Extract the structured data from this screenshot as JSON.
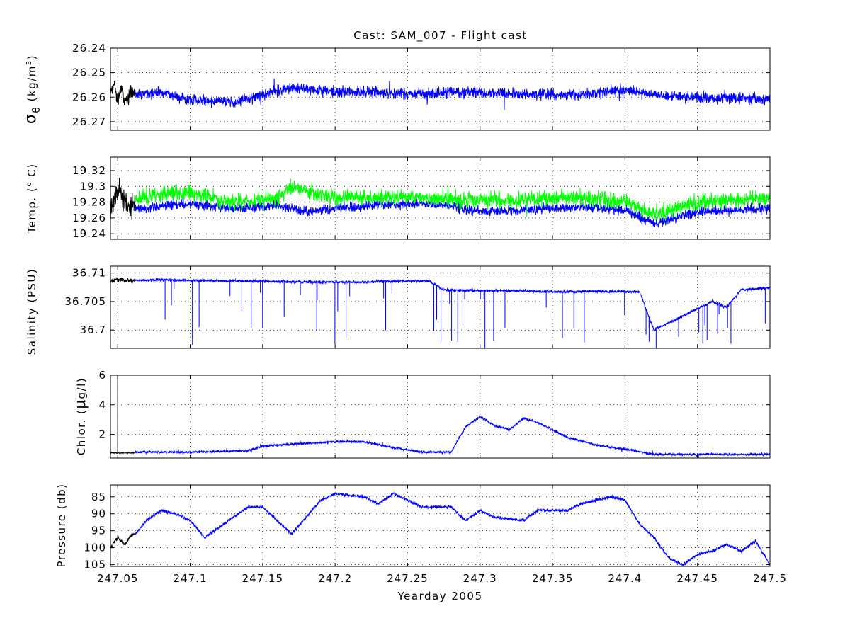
{
  "title": "Cast: SAM_007 - Flight cast",
  "colors": {
    "primary": "#0000ff",
    "secondary": "#00ff00",
    "initial": "#000000",
    "grid": "#000000"
  },
  "chart_data": [
    {
      "type": "line",
      "ylabel": "σθ (kg/m³)",
      "ylabel_parts": {
        "sym": "σ",
        "sub": "θ",
        "unit": "(kg/m",
        "sup": "3",
        "close": ")"
      },
      "x_range": [
        247.045,
        247.5
      ],
      "ylim": [
        26.2735,
        26.24
      ],
      "y_reversed": true,
      "yticks": [
        26.24,
        26.25,
        26.26,
        26.27
      ],
      "ytick_labels": [
        "26.24",
        "26.25",
        "26.26",
        "26.27"
      ],
      "grid": true,
      "series": [
        {
          "role": "initial",
          "color": "#000000",
          "noise": 0.003,
          "spikes": 0.0055,
          "seed": 11,
          "points": [
            [
              247.045,
              26.258
            ],
            [
              247.048,
              26.255
            ],
            [
              247.05,
              26.262
            ],
            [
              247.052,
              26.257
            ],
            [
              247.055,
              26.261
            ],
            [
              247.058,
              26.259
            ],
            [
              247.06,
              26.257
            ],
            [
              247.062,
              26.258
            ]
          ]
        },
        {
          "role": "main",
          "color": "#0000ff",
          "noise": 0.0022,
          "spikes": 0.0045,
          "seed": 12,
          "points": [
            [
              247.062,
              26.259
            ],
            [
              247.08,
              26.258
            ],
            [
              247.1,
              26.261
            ],
            [
              247.13,
              26.262
            ],
            [
              247.15,
              26.259
            ],
            [
              247.17,
              26.256
            ],
            [
              247.2,
              26.258
            ],
            [
              247.23,
              26.258
            ],
            [
              247.26,
              26.259
            ],
            [
              247.28,
              26.258
            ],
            [
              247.3,
              26.258
            ],
            [
              247.33,
              26.259
            ],
            [
              247.35,
              26.259
            ],
            [
              247.37,
              26.259
            ],
            [
              247.4,
              26.257
            ],
            [
              247.42,
              26.259
            ],
            [
              247.45,
              26.26
            ],
            [
              247.5,
              26.261
            ]
          ]
        }
      ]
    },
    {
      "type": "line",
      "ylabel": "Temp. (° C)",
      "ylabel_parts": {
        "text": "Temp. (",
        "sup": "o",
        "close": " C)"
      },
      "x_range": [
        247.045,
        247.5
      ],
      "ylim": [
        19.233,
        19.337
      ],
      "yticks": [
        19.24,
        19.26,
        19.28,
        19.3,
        19.32
      ],
      "ytick_labels": [
        "19.24",
        "19.26",
        "19.28",
        "19.3",
        "19.32"
      ],
      "grid": true,
      "series": [
        {
          "role": "initial",
          "color": "#000000",
          "noise": 0.015,
          "spikes": 0.02,
          "seed": 21,
          "points": [
            [
              247.045,
              19.27
            ],
            [
              247.05,
              19.3
            ],
            [
              247.055,
              19.28
            ],
            [
              247.06,
              19.27
            ],
            [
              247.062,
              19.28
            ]
          ]
        },
        {
          "role": "main",
          "color": "#0000ff",
          "noise": 0.006,
          "spikes": 0.008,
          "seed": 22,
          "points": [
            [
              247.062,
              19.272
            ],
            [
              247.08,
              19.275
            ],
            [
              247.1,
              19.278
            ],
            [
              247.13,
              19.272
            ],
            [
              247.16,
              19.276
            ],
            [
              247.18,
              19.268
            ],
            [
              247.2,
              19.272
            ],
            [
              247.23,
              19.277
            ],
            [
              247.26,
              19.278
            ],
            [
              247.28,
              19.275
            ],
            [
              247.3,
              19.268
            ],
            [
              247.33,
              19.27
            ],
            [
              247.35,
              19.272
            ],
            [
              247.37,
              19.274
            ],
            [
              247.4,
              19.27
            ],
            [
              247.42,
              19.252
            ],
            [
              247.45,
              19.268
            ],
            [
              247.48,
              19.27
            ],
            [
              247.5,
              19.272
            ]
          ]
        },
        {
          "role": "secondary",
          "color": "#00ff00",
          "noise": 0.01,
          "spikes": 0.012,
          "seed": 23,
          "points": [
            [
              247.062,
              19.285
            ],
            [
              247.08,
              19.29
            ],
            [
              247.1,
              19.292
            ],
            [
              247.13,
              19.28
            ],
            [
              247.16,
              19.285
            ],
            [
              247.17,
              19.3
            ],
            [
              247.2,
              19.285
            ],
            [
              247.23,
              19.287
            ],
            [
              247.26,
              19.286
            ],
            [
              247.28,
              19.284
            ],
            [
              247.3,
              19.283
            ],
            [
              247.33,
              19.282
            ],
            [
              247.35,
              19.286
            ],
            [
              247.37,
              19.287
            ],
            [
              247.4,
              19.28
            ],
            [
              247.42,
              19.265
            ],
            [
              247.45,
              19.28
            ],
            [
              247.48,
              19.284
            ],
            [
              247.5,
              19.285
            ]
          ]
        }
      ]
    },
    {
      "type": "line",
      "ylabel": "Salinity (PSU)",
      "x_range": [
        247.045,
        247.5
      ],
      "ylim": [
        36.6968,
        36.7112
      ],
      "y_reversed": true,
      "yticks": [
        36.7,
        36.705,
        36.71
      ],
      "ytick_labels": [
        "36.7",
        "36.705",
        "36.71"
      ],
      "grid": true,
      "series": [
        {
          "role": "initial",
          "color": "#000000",
          "noise": 0.0004,
          "spikes": 0.0005,
          "seed": 31,
          "points": [
            [
              247.045,
              36.7085
            ],
            [
              247.05,
              36.7089
            ],
            [
              247.055,
              36.7087
            ],
            [
              247.062,
              36.7086
            ]
          ]
        },
        {
          "role": "main",
          "color": "#0000ff",
          "noise": 0.00025,
          "spikes": 0.0,
          "seed": 32,
          "dips": {
            "count": 55,
            "max": 36.6965,
            "min_depth": 0.0015
          },
          "points": [
            [
              247.062,
              36.7087
            ],
            [
              247.08,
              36.7088
            ],
            [
              247.1,
              36.7087
            ],
            [
              247.13,
              36.7086
            ],
            [
              247.16,
              36.7085
            ],
            [
              247.19,
              36.7084
            ],
            [
              247.22,
              36.7084
            ],
            [
              247.24,
              36.7086
            ],
            [
              247.265,
              36.7086
            ],
            [
              247.275,
              36.707
            ],
            [
              247.3,
              36.7069
            ],
            [
              247.33,
              36.7069
            ],
            [
              247.35,
              36.7067
            ],
            [
              247.38,
              36.7068
            ],
            [
              247.41,
              36.7067
            ],
            [
              247.42,
              36.7
            ],
            [
              247.44,
              36.7025
            ],
            [
              247.46,
              36.705
            ],
            [
              247.47,
              36.704
            ],
            [
              247.48,
              36.707
            ],
            [
              247.5,
              36.7075
            ]
          ]
        }
      ]
    },
    {
      "type": "line",
      "ylabel": "Chlor. (μg/l)",
      "ylabel_parts": {
        "text": "Chlor. (",
        "mu": "μ",
        "close": "g/l)"
      },
      "x_range": [
        247.045,
        247.5
      ],
      "ylim": [
        0.4,
        6.0
      ],
      "yticks": [
        2,
        4,
        6
      ],
      "ytick_labels": [
        "2",
        "4",
        "6"
      ],
      "grid": true,
      "series": [
        {
          "role": "initial",
          "color": "#000000",
          "noise": 0.03,
          "spikes": 0.0,
          "seed": 41,
          "points": [
            [
              247.045,
              0.75
            ],
            [
              247.062,
              0.75
            ]
          ],
          "marker_line": {
            "x": 247.05,
            "y1": 0.75,
            "y2": 6.0
          }
        },
        {
          "role": "main",
          "color": "#0000ff",
          "noise": 0.08,
          "spikes": 0.25,
          "seed": 42,
          "points": [
            [
              247.062,
              0.8
            ],
            [
              247.1,
              0.8
            ],
            [
              247.14,
              0.9
            ],
            [
              247.15,
              1.2
            ],
            [
              247.18,
              1.4
            ],
            [
              247.2,
              1.5
            ],
            [
              247.22,
              1.5
            ],
            [
              247.24,
              1.1
            ],
            [
              247.26,
              0.8
            ],
            [
              247.28,
              0.8
            ],
            [
              247.29,
              2.5
            ],
            [
              247.3,
              3.2
            ],
            [
              247.31,
              2.6
            ],
            [
              247.32,
              2.3
            ],
            [
              247.33,
              3.1
            ],
            [
              247.34,
              2.8
            ],
            [
              247.36,
              1.8
            ],
            [
              247.38,
              1.3
            ],
            [
              247.4,
              1.0
            ],
            [
              247.42,
              0.65
            ],
            [
              247.5,
              0.65
            ]
          ]
        }
      ]
    },
    {
      "type": "line",
      "ylabel": "Pressure (db)",
      "x_range": [
        247.045,
        247.5
      ],
      "ylim": [
        105.5,
        81.5
      ],
      "y_reversed": true,
      "yticks": [
        85,
        90,
        95,
        100,
        105
      ],
      "ytick_labels": [
        "85",
        "90",
        "95",
        "100",
        "105"
      ],
      "xticks": [
        247.05,
        247.1,
        247.15,
        247.2,
        247.25,
        247.3,
        247.35,
        247.4,
        247.45,
        247.5
      ],
      "xtick_labels": [
        "247.05",
        "247.1",
        "247.15",
        "247.2",
        "247.25",
        "247.3",
        "247.35",
        "247.4",
        "247.45",
        "247.5"
      ],
      "xlabel": "Yearday 2005",
      "grid": true,
      "series": [
        {
          "role": "initial",
          "color": "#000000",
          "noise": 0.6,
          "spikes": 0.0,
          "seed": 51,
          "points": [
            [
              247.045,
              100
            ],
            [
              247.05,
              97
            ],
            [
              247.055,
              99
            ],
            [
              247.06,
              96
            ],
            [
              247.062,
              96
            ]
          ]
        },
        {
          "role": "main",
          "color": "#0000ff",
          "noise": 0.45,
          "spikes": 0.0,
          "seed": 52,
          "points": [
            [
              247.062,
              96
            ],
            [
              247.07,
              92
            ],
            [
              247.08,
              89
            ],
            [
              247.09,
              90
            ],
            [
              247.1,
              92
            ],
            [
              247.11,
              97
            ],
            [
              247.12,
              94
            ],
            [
              247.13,
              91
            ],
            [
              247.14,
              88
            ],
            [
              247.15,
              88
            ],
            [
              247.16,
              92
            ],
            [
              247.17,
              96
            ],
            [
              247.18,
              91
            ],
            [
              247.19,
              86
            ],
            [
              247.2,
              84
            ],
            [
              247.22,
              85
            ],
            [
              247.23,
              87
            ],
            [
              247.24,
              84
            ],
            [
              247.26,
              88
            ],
            [
              247.28,
              88
            ],
            [
              247.29,
              92
            ],
            [
              247.3,
              89
            ],
            [
              247.31,
              91
            ],
            [
              247.33,
              92
            ],
            [
              247.34,
              89
            ],
            [
              247.36,
              89
            ],
            [
              247.37,
              87
            ],
            [
              247.39,
              85
            ],
            [
              247.4,
              86
            ],
            [
              247.41,
              93
            ],
            [
              247.42,
              97
            ],
            [
              247.43,
              103
            ],
            [
              247.44,
              105
            ],
            [
              247.45,
              102
            ],
            [
              247.46,
              101
            ],
            [
              247.47,
              99
            ],
            [
              247.48,
              101
            ],
            [
              247.49,
              98
            ],
            [
              247.5,
              105
            ]
          ]
        }
      ]
    }
  ]
}
